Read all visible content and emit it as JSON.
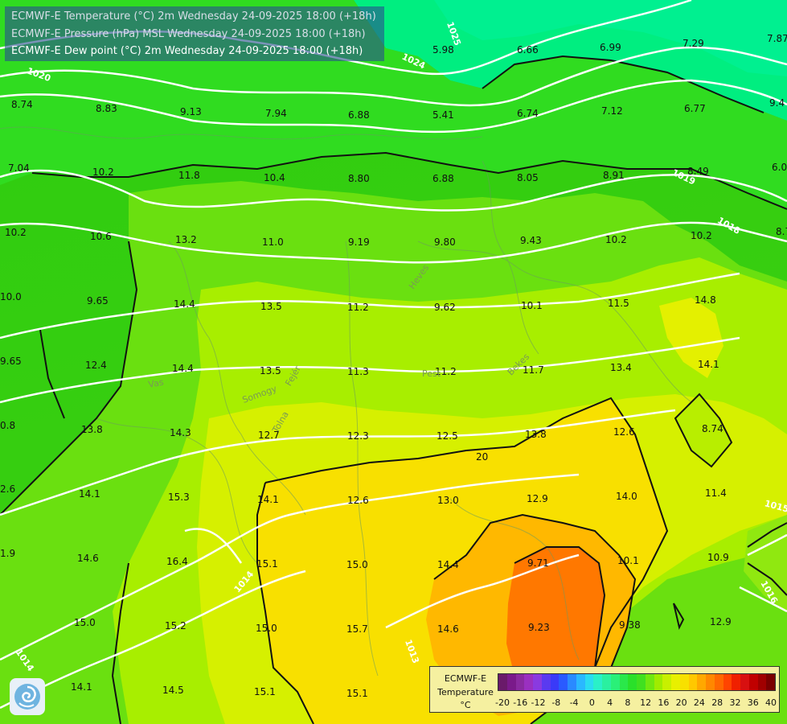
{
  "titles": [
    "ECMWF-E Temperature (°C) 2m Wednesday 24-09-2025 18:00 (+18h)",
    "ECMWF-E Pressure (hPa) MSL Wednesday 24-09-2025 18:00 (+18h)",
    "ECMWF-E Dew point (°C) 2m Wednesday 24-09-2025 18:00 (+18h)"
  ],
  "legend": {
    "title": [
      "ECMWF-E",
      "Temperature",
      "°C"
    ],
    "ticks": [
      "-20",
      "-16",
      "-12",
      "-8",
      "-4",
      "0",
      "4",
      "8",
      "12",
      "16",
      "20",
      "24",
      "28",
      "32",
      "36",
      "40"
    ],
    "colors": [
      "#6a1a6a",
      "#7a1a8a",
      "#8a2aa0",
      "#9a30c0",
      "#8a3ae0",
      "#5a3af0",
      "#3a3af8",
      "#2a5aff",
      "#2a8aff",
      "#2ab8ff",
      "#2adcf0",
      "#2af0c8",
      "#2af0a0",
      "#2af078",
      "#2ae84a",
      "#2ae02a",
      "#40e020",
      "#70e810",
      "#a0ec00",
      "#c8f000",
      "#e8f000",
      "#f8e000",
      "#ffc800",
      "#ffa800",
      "#ff8800",
      "#ff6800",
      "#ff4400",
      "#f02000",
      "#d81010",
      "#c00000",
      "#a00000",
      "#7a0000"
    ]
  },
  "map": {
    "temperature_labels": [
      "8.74",
      "8.83",
      "9.13",
      "7.94",
      "6.88",
      "5.41",
      "6.74",
      "7.12",
      "6.77",
      "9.4",
      "5.98",
      "6.66",
      "6.99",
      "7.29",
      "7.87",
      "7.04",
      "10.2",
      "11.8",
      "10.4",
      "8.80",
      "6.88",
      "8.05",
      "8.91",
      "8.49",
      "6.0",
      "10.2",
      "10.6",
      "13.2",
      "11.0",
      "9.19",
      "9.80",
      "9.43",
      "10.2",
      "10.2",
      "8.7",
      "10.0",
      "9.65",
      "14.4",
      "13.5",
      "11.2",
      "9.62",
      "10.1",
      "11.5",
      "14.8",
      "9.65",
      "12.4",
      "14.4",
      "13.5",
      "11.3",
      "11.2",
      "11.7",
      "13.4",
      "14.1",
      "0.8",
      "13.8",
      "14.3",
      "12.7",
      "12.3",
      "12.5",
      "13.8",
      "12.6",
      "8.74",
      "2.6",
      "14.1",
      "15.3",
      "14.1",
      "12.6",
      "13.0",
      "12.9",
      "14.0",
      "11.4",
      "1.9",
      "14.6",
      "16.4",
      "15.1",
      "15.0",
      "14.4",
      "9.71",
      "10.1",
      "10.9",
      "15.0",
      "15.2",
      "15.0",
      "15.7",
      "14.6",
      "9.23",
      "9.38",
      "12.9",
      "14.1",
      "14.5",
      "15.1",
      "15.1"
    ],
    "isobar_labels": [
      "1025",
      "1024",
      "1020",
      "1019",
      "1018",
      "1014",
      "1013",
      "1016",
      "1015"
    ],
    "isotherm_label": "20",
    "region_labels": [
      "Vas",
      "Somogy",
      "Fejér",
      "Tolna",
      "Pest",
      "Bekes",
      "Heves"
    ]
  }
}
